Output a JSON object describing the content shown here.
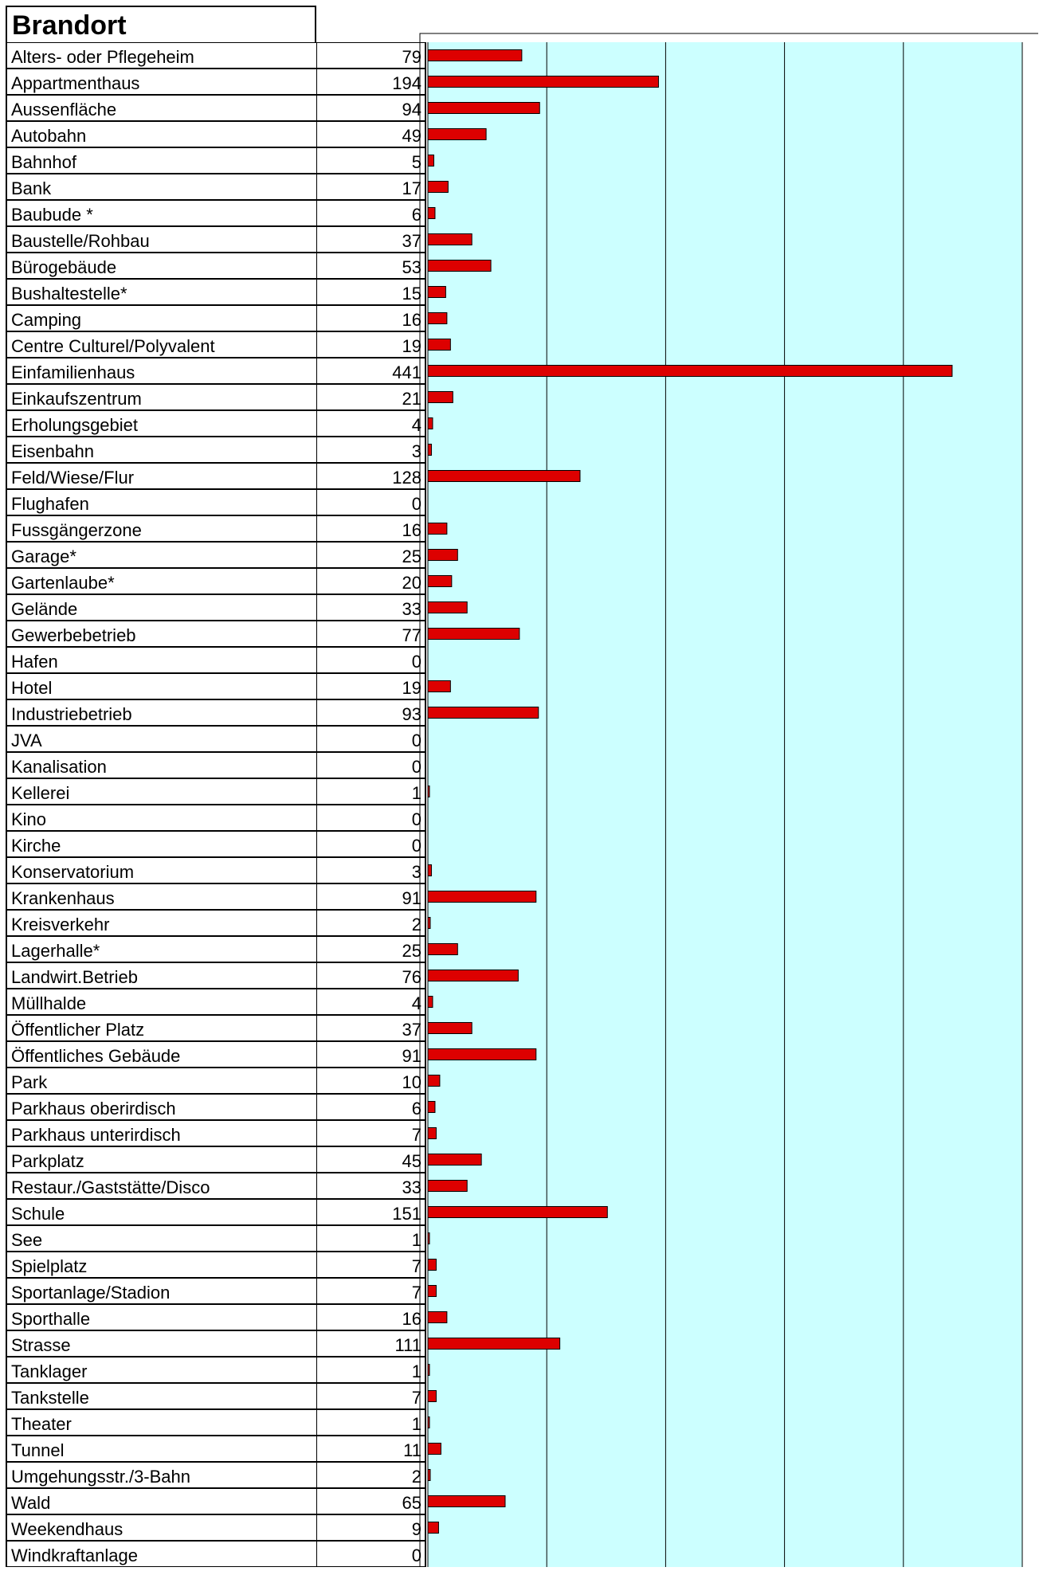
{
  "title": "Brandort",
  "colors": {
    "bar": "#dd0000",
    "bar_stroke": "#000000",
    "plot_bg": "#ccffff",
    "grid": "#000000"
  },
  "chart_data": {
    "type": "bar",
    "orientation": "horizontal",
    "title": "Brandort",
    "xlim": [
      0,
      500
    ],
    "grid": true,
    "categories": [
      "Alters-  oder Pflegeheim",
      "Appartmenthaus",
      "Aussenfläche",
      "Autobahn",
      "Bahnhof",
      "Bank",
      "Baubude *",
      "Baustelle/Rohbau",
      "Bürogebäude",
      "Bushaltestelle*",
      "Camping",
      "Centre Culturel/Polyvalent",
      "Einfamilienhaus",
      "Einkaufszentrum",
      "Erholungsgebiet",
      "Eisenbahn",
      "Feld/Wiese/Flur",
      "Flughafen",
      "Fussgängerzone",
      "Garage*",
      "Gartenlaube*",
      "Gelände",
      "Gewerbebetrieb",
      "Hafen",
      "Hotel",
      "Industriebetrieb",
      "JVA",
      "Kanalisation",
      "Kellerei",
      "Kino",
      "Kirche",
      "Konservatorium",
      "Krankenhaus",
      "Kreisverkehr",
      "Lagerhalle*",
      "Landwirt.Betrieb",
      "Müllhalde",
      "Öffentlicher Platz",
      "Öffentliches Gebäude",
      "Park",
      "Parkhaus oberirdisch",
      "Parkhaus unterirdisch",
      "Parkplatz",
      "Restaur./Gaststätte/Disco",
      "Schule",
      "See",
      "Spielplatz",
      "Sportanlage/Stadion",
      "Sporthalle",
      "Strasse",
      "Tanklager",
      "Tankstelle",
      "Theater",
      "Tunnel",
      "Umgehungsstr./3-Bahn",
      "Wald",
      "Weekendhaus",
      "Windkraftanlage"
    ],
    "values": [
      79,
      194,
      94,
      49,
      5,
      17,
      6,
      37,
      53,
      15,
      16,
      19,
      441,
      21,
      4,
      3,
      128,
      0,
      16,
      25,
      20,
      33,
      77,
      0,
      19,
      93,
      0,
      0,
      1,
      0,
      0,
      3,
      91,
      2,
      25,
      76,
      4,
      37,
      91,
      10,
      6,
      7,
      45,
      33,
      151,
      1,
      7,
      7,
      16,
      111,
      1,
      7,
      1,
      11,
      2,
      65,
      9,
      0
    ]
  }
}
